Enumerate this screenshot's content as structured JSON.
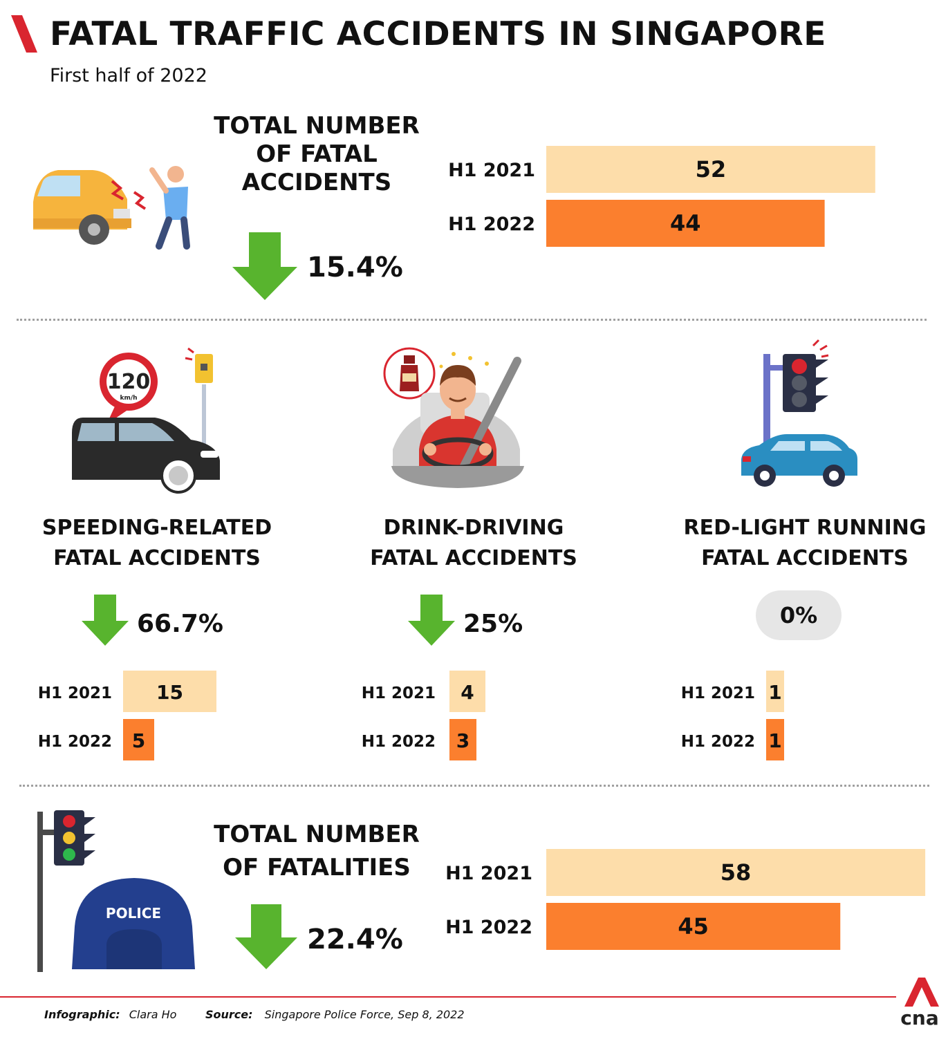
{
  "header": {
    "title": "FATAL TRAFFIC ACCIDENTS IN SINGAPORE",
    "subtitle": "First half of 2022"
  },
  "colors": {
    "accent_red": "#d9252f",
    "bar_2021": "#fdddaa",
    "bar_2022": "#fb7f2e",
    "arrow_green": "#58b42e"
  },
  "sections": {
    "accidents": {
      "heading": "TOTAL NUMBER OF FATAL ACCIDENTS",
      "change": "15.4%",
      "icon": "car-pedestrian-collision-icon"
    },
    "speeding": {
      "heading": "SPEEDING-RELATED FATAL ACCIDENTS",
      "change": "66.7%",
      "icon": "speeding-car-camera-icon",
      "sign_speed": "120",
      "sign_unit": "km/h"
    },
    "drink": {
      "heading": "DRINK-DRIVING FATAL ACCIDENTS",
      "change": "25%",
      "icon": "drunk-driver-icon"
    },
    "redlight": {
      "heading": "RED-LIGHT RUNNING FATAL ACCIDENTS",
      "change": "0%",
      "icon": "traffic-light-car-icon"
    },
    "fatalities": {
      "heading": "TOTAL NUMBER OF FATALITIES",
      "change": "22.4%",
      "icon": "police-traffic-light-icon",
      "police_text": "POLICE"
    }
  },
  "chart_data": [
    {
      "type": "bar",
      "title": "TOTAL NUMBER OF FATAL ACCIDENTS",
      "categories": [
        "H1 2021",
        "H1 2022"
      ],
      "values": [
        52,
        44
      ]
    },
    {
      "type": "bar",
      "title": "SPEEDING-RELATED FATAL ACCIDENTS",
      "categories": [
        "H1 2021",
        "H1 2022"
      ],
      "values": [
        15,
        5
      ]
    },
    {
      "type": "bar",
      "title": "DRINK-DRIVING FATAL ACCIDENTS",
      "categories": [
        "H1 2021",
        "H1 2022"
      ],
      "values": [
        4,
        3
      ]
    },
    {
      "type": "bar",
      "title": "RED-LIGHT RUNNING FATAL ACCIDENTS",
      "categories": [
        "H1 2021",
        "H1 2022"
      ],
      "values": [
        1,
        1
      ]
    },
    {
      "type": "bar",
      "title": "TOTAL NUMBER OF FATALITIES",
      "categories": [
        "H1 2021",
        "H1 2022"
      ],
      "values": [
        58,
        45
      ]
    }
  ],
  "footer": {
    "infographic_label": "Infographic:",
    "infographic_author": "Clara Ho",
    "source_label": "Source:",
    "source_text": "Singapore Police Force, Sep 8, 2022",
    "logo_text": "cna"
  }
}
